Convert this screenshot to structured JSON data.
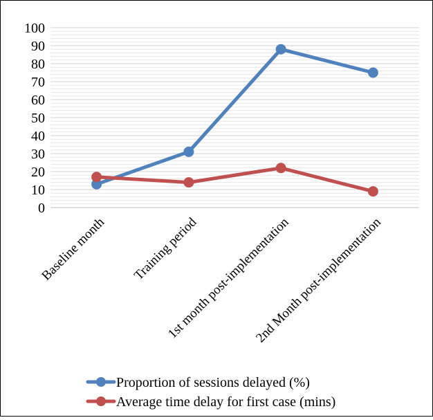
{
  "chart_data": {
    "type": "line",
    "title": "",
    "xlabel": "",
    "ylabel": "",
    "categories": [
      "Baseline month",
      "Training period",
      "1st month post-implementation",
      "2nd Month post-implementation"
    ],
    "ylim": [
      0,
      100
    ],
    "yticks": [
      0,
      10,
      20,
      30,
      40,
      50,
      60,
      70,
      80,
      90,
      100
    ],
    "minor_gridlines": true,
    "legend_position": "bottom",
    "series": [
      {
        "name": "Proportion of sessions delayed (%)",
        "color": "#4f81bd",
        "values": [
          13,
          31,
          88,
          75
        ]
      },
      {
        "name": "Average time delay for first case (mins)",
        "color": "#c0504d",
        "values": [
          17,
          14,
          22,
          9
        ]
      }
    ]
  }
}
